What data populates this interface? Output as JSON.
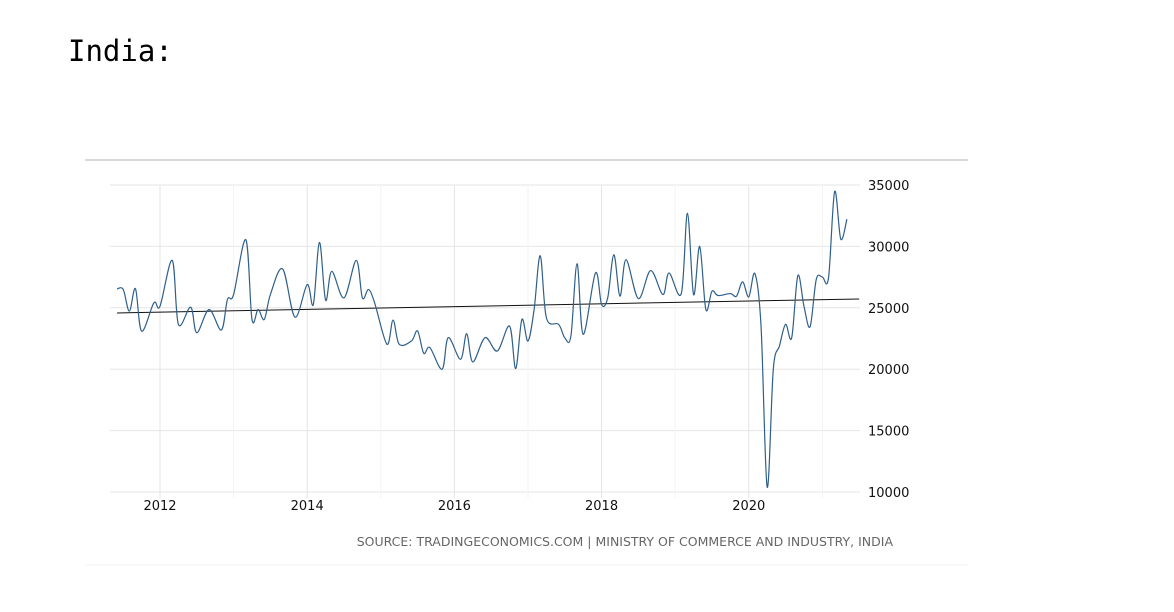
{
  "page": {
    "title": "India:"
  },
  "chart_data": {
    "type": "line",
    "title": "",
    "xlabel": "",
    "ylabel": "",
    "source": "SOURCE: TRADINGECONOMICS.COM | MINISTRY OF COMMERCE AND INDUSTRY, INDIA",
    "x_ticks": [
      "2012",
      "2014",
      "2016",
      "2018",
      "2020"
    ],
    "y_ticks": [
      35000,
      30000,
      25000,
      20000,
      15000,
      10000
    ],
    "ylim": [
      10000,
      35000
    ],
    "xlim": [
      "2011-06",
      "2021-05"
    ],
    "grid": true,
    "y_axis_side": "right",
    "colors": {
      "series": "#2f5f8a",
      "trend": "#111111",
      "grid": "#e6e6e6"
    },
    "series": [
      {
        "points": [
          [
            "2011-06",
            26540
          ],
          [
            "2011-07",
            26500
          ],
          [
            "2011-08",
            24730
          ],
          [
            "2011-09",
            26560
          ],
          [
            "2011-10",
            23100
          ],
          [
            "2011-12",
            25400
          ],
          [
            "2012-01",
            25130
          ],
          [
            "2012-03",
            28860
          ],
          [
            "2012-04",
            23650
          ],
          [
            "2012-06",
            25050
          ],
          [
            "2012-07",
            22970
          ],
          [
            "2012-09",
            24860
          ],
          [
            "2012-11",
            23190
          ],
          [
            "2012-12",
            25680
          ],
          [
            "2013-01",
            26080
          ],
          [
            "2013-03",
            30540
          ],
          [
            "2013-04",
            24050
          ],
          [
            "2013-05",
            24860
          ],
          [
            "2013-06",
            24050
          ],
          [
            "2013-07",
            26080
          ],
          [
            "2013-09",
            28160
          ],
          [
            "2013-11",
            24240
          ],
          [
            "2014-01",
            26890
          ],
          [
            "2014-02",
            25270
          ],
          [
            "2014-03",
            30320
          ],
          [
            "2014-04",
            25620
          ],
          [
            "2014-05",
            27970
          ],
          [
            "2014-07",
            25810
          ],
          [
            "2014-09",
            28860
          ],
          [
            "2014-10",
            25810
          ],
          [
            "2014-11",
            26490
          ],
          [
            "2014-12",
            25400
          ],
          [
            "2015-02",
            22030
          ],
          [
            "2015-03",
            24000
          ],
          [
            "2015-04",
            22030
          ],
          [
            "2015-06",
            22300
          ],
          [
            "2015-07",
            23110
          ],
          [
            "2015-08",
            21300
          ],
          [
            "2015-09",
            21760
          ],
          [
            "2015-11",
            20000
          ],
          [
            "2015-12",
            22570
          ],
          [
            "2016-02",
            20810
          ],
          [
            "2016-03",
            22890
          ],
          [
            "2016-04",
            20590
          ],
          [
            "2016-06",
            22570
          ],
          [
            "2016-08",
            21480
          ],
          [
            "2016-10",
            23510
          ],
          [
            "2016-11",
            20050
          ],
          [
            "2016-12",
            24050
          ],
          [
            "2017-01",
            22290
          ],
          [
            "2017-02",
            24860
          ],
          [
            "2017-03",
            29240
          ],
          [
            "2017-04",
            24190
          ],
          [
            "2017-06",
            23650
          ],
          [
            "2017-07",
            22560
          ],
          [
            "2017-08",
            22700
          ],
          [
            "2017-09",
            28590
          ],
          [
            "2017-10",
            22840
          ],
          [
            "2017-12",
            27840
          ],
          [
            "2018-01",
            25270
          ],
          [
            "2018-02",
            25810
          ],
          [
            "2018-03",
            29320
          ],
          [
            "2018-04",
            25950
          ],
          [
            "2018-05",
            28920
          ],
          [
            "2018-07",
            25750
          ],
          [
            "2018-09",
            28030
          ],
          [
            "2018-11",
            26080
          ],
          [
            "2018-12",
            27840
          ],
          [
            "2019-02",
            26160
          ],
          [
            "2019-03",
            32700
          ],
          [
            "2019-04",
            26080
          ],
          [
            "2019-05",
            30000
          ],
          [
            "2019-06",
            24860
          ],
          [
            "2019-07",
            26350
          ],
          [
            "2019-08",
            26000
          ],
          [
            "2019-10",
            26160
          ],
          [
            "2019-11",
            25950
          ],
          [
            "2019-12",
            27110
          ],
          [
            "2020-01",
            25890
          ],
          [
            "2020-02",
            27780
          ],
          [
            "2020-03",
            23510
          ],
          [
            "2020-04",
            10400
          ],
          [
            "2020-05",
            20000
          ],
          [
            "2020-06",
            21890
          ],
          [
            "2020-07",
            23650
          ],
          [
            "2020-08",
            22560
          ],
          [
            "2020-09",
            27620
          ],
          [
            "2020-10",
            25130
          ],
          [
            "2020-11",
            23460
          ],
          [
            "2020-12",
            27300
          ],
          [
            "2021-01",
            27510
          ],
          [
            "2021-02",
            27430
          ],
          [
            "2021-03",
            34460
          ],
          [
            "2021-04",
            30590
          ],
          [
            "2021-05",
            32220
          ]
        ]
      }
    ],
    "trend": [
      [
        "2011-06",
        24580
      ],
      [
        "2021-07",
        25720
      ]
    ]
  }
}
